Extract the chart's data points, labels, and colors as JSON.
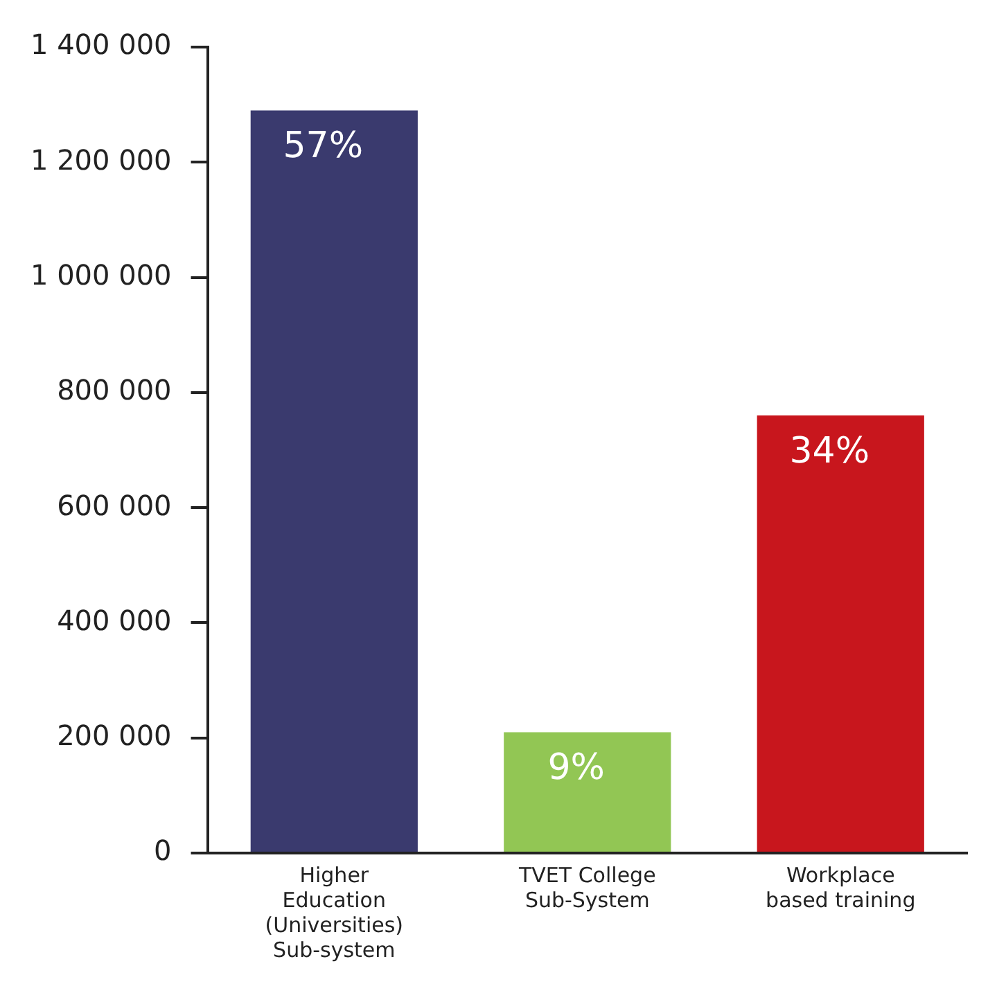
{
  "chart_data": {
    "type": "bar",
    "categories": [
      "Higher Education (Universities) Sub-system",
      "TVET College Sub-System",
      "Workplace based training"
    ],
    "values": [
      1290000,
      210000,
      760000
    ],
    "colors": [
      "#3a3a6e",
      "#92c654",
      "#c8161d"
    ],
    "annotations": [
      {
        "text": "57%",
        "x": "Higher Education (Universities) Sub-system",
        "y": 1290000
      },
      {
        "text": "9%",
        "x": "TVET College Sub-System",
        "y": 210000
      },
      {
        "text": "34%",
        "x": "Workplace based training",
        "y": 760000
      }
    ],
    "ylim": [
      0,
      1400000
    ],
    "yticks": [
      {
        "value": 0,
        "label": "0"
      },
      {
        "value": 200000,
        "label": "200 000"
      },
      {
        "value": 400000,
        "label": "400 000"
      },
      {
        "value": 600000,
        "label": "600 000"
      },
      {
        "value": 800000,
        "label": "800 000"
      },
      {
        "value": 1000000,
        "label": "1 000 000"
      },
      {
        "value": 1200000,
        "label": "1 200 000"
      },
      {
        "value": 1400000,
        "label": "1 400 000"
      }
    ],
    "grid": false,
    "legend": false
  }
}
